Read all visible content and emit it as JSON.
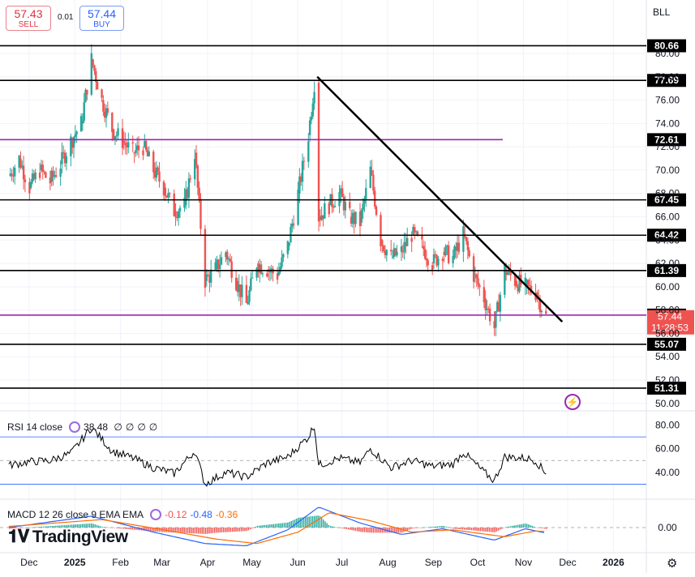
{
  "header": {
    "sell_price": "57.43",
    "sell_label": "SELL",
    "buy_price": "57.44",
    "buy_label": "BUY",
    "spread": "0.01",
    "symbol": "BLL"
  },
  "rsi_panel": {
    "title": "RSI 14 close",
    "value": "38.48",
    "extras": [
      "∅",
      "∅",
      "∅",
      "∅"
    ],
    "icon": "gear-icon"
  },
  "macd_panel": {
    "title": "MACD 12 26 close 9 EMA EMA",
    "values": [
      {
        "text": "-0.12",
        "color": "#ef5350"
      },
      {
        "text": "-0.48",
        "color": "#2962ff"
      },
      {
        "text": "-0.36",
        "color": "#ff6d00"
      }
    ],
    "icon": "gear-icon"
  },
  "brand": {
    "name": "TradingView",
    "icon": "tv-logo-icon"
  },
  "chart_data": [
    {
      "type": "candlestick",
      "ylim": [
        49.5,
        82.5
      ],
      "yticks": [
        50,
        52,
        54,
        56,
        58,
        60,
        62,
        64,
        66,
        68,
        70,
        72,
        74,
        76,
        78,
        80
      ],
      "x_tick_labels": [
        "Dec",
        "2025",
        "Feb",
        "Mar",
        "Apr",
        "May",
        "Jun",
        "Jul",
        "Aug",
        "Sep",
        "Oct",
        "Nov",
        "Dec",
        "2026"
      ],
      "price_levels": [
        {
          "label": "80.66",
          "value": 80.66,
          "color": "#000000"
        },
        {
          "label": "77.69",
          "value": 77.69,
          "color": "#000000"
        },
        {
          "label": "72.61",
          "value": 72.61,
          "color": "#9c27b0"
        },
        {
          "label": "67.45",
          "value": 67.45,
          "color": "#000000"
        },
        {
          "label": "64.42",
          "value": 64.42,
          "color": "#000000"
        },
        {
          "label": "61.39",
          "value": 61.39,
          "color": "#000000"
        },
        {
          "label": "57.57",
          "value": 57.57,
          "color": "#9c27b0"
        },
        {
          "label": "55.07",
          "value": 55.07,
          "color": "#000000"
        },
        {
          "label": "51.31",
          "value": 51.31,
          "color": "#000000"
        }
      ],
      "last_price": {
        "label": "57.44",
        "countdown": "11:28:53",
        "value": 57.44,
        "color": "#ef5350"
      },
      "trendline": {
        "from": [
          "2025-06-22",
          78.0
        ],
        "to": [
          "2025-12-05",
          57.0
        ]
      },
      "series": [
        {
          "date": "2024-11-25",
          "close": 69.5
        },
        {
          "date": "2024-12-02",
          "close": 71.0
        },
        {
          "date": "2024-12-09",
          "close": 68.5
        },
        {
          "date": "2024-12-16",
          "close": 70.0
        },
        {
          "date": "2024-12-23",
          "close": 69.0
        },
        {
          "date": "2024-12-30",
          "close": 70.5
        },
        {
          "date": "2025-01-06",
          "close": 72.5
        },
        {
          "date": "2025-01-13",
          "close": 74.0
        },
        {
          "date": "2025-01-20",
          "close": 79.5
        },
        {
          "date": "2025-01-27",
          "close": 76.0
        },
        {
          "date": "2025-02-03",
          "close": 73.5
        },
        {
          "date": "2025-02-10",
          "close": 72.5
        },
        {
          "date": "2025-02-17",
          "close": 71.5
        },
        {
          "date": "2025-02-24",
          "close": 72.0
        },
        {
          "date": "2025-03-03",
          "close": 70.0
        },
        {
          "date": "2025-03-10",
          "close": 68.5
        },
        {
          "date": "2025-03-17",
          "close": 66.5
        },
        {
          "date": "2025-03-24",
          "close": 67.0
        },
        {
          "date": "2025-03-31",
          "close": 71.5
        },
        {
          "date": "2025-04-07",
          "close": 60.5
        },
        {
          "date": "2025-04-14",
          "close": 61.5
        },
        {
          "date": "2025-04-21",
          "close": 63.0
        },
        {
          "date": "2025-04-28",
          "close": 60.5
        },
        {
          "date": "2025-05-05",
          "close": 58.5
        },
        {
          "date": "2025-05-12",
          "close": 62.0
        },
        {
          "date": "2025-05-19",
          "close": 61.5
        },
        {
          "date": "2025-05-26",
          "close": 61.0
        },
        {
          "date": "2025-06-02",
          "close": 63.5
        },
        {
          "date": "2025-06-09",
          "close": 68.0
        },
        {
          "date": "2025-06-16",
          "close": 73.0
        },
        {
          "date": "2025-06-20",
          "close": 77.5
        },
        {
          "date": "2025-06-23",
          "close": 66.0
        },
        {
          "date": "2025-06-30",
          "close": 67.0
        },
        {
          "date": "2025-07-07",
          "close": 68.0
        },
        {
          "date": "2025-07-14",
          "close": 66.0
        },
        {
          "date": "2025-07-21",
          "close": 65.5
        },
        {
          "date": "2025-07-28",
          "close": 70.0
        },
        {
          "date": "2025-08-04",
          "close": 64.0
        },
        {
          "date": "2025-08-11",
          "close": 62.5
        },
        {
          "date": "2025-08-18",
          "close": 63.0
        },
        {
          "date": "2025-08-25",
          "close": 64.5
        },
        {
          "date": "2025-09-01",
          "close": 63.5
        },
        {
          "date": "2025-09-08",
          "close": 62.0
        },
        {
          "date": "2025-09-15",
          "close": 63.0
        },
        {
          "date": "2025-09-22",
          "close": 62.5
        },
        {
          "date": "2025-09-29",
          "close": 64.5
        },
        {
          "date": "2025-10-06",
          "close": 61.0
        },
        {
          "date": "2025-10-13",
          "close": 59.0
        },
        {
          "date": "2025-10-20",
          "close": 56.5
        },
        {
          "date": "2025-10-27",
          "close": 61.5
        },
        {
          "date": "2025-11-03",
          "close": 60.5
        },
        {
          "date": "2025-11-10",
          "close": 60.0
        },
        {
          "date": "2025-11-17",
          "close": 59.5
        },
        {
          "date": "2025-11-24",
          "close": 57.44
        }
      ]
    },
    {
      "type": "line",
      "name": "RSI 14 close",
      "yticks": [
        40,
        60,
        80
      ],
      "bands": [
        30,
        50,
        70
      ],
      "ylim": [
        20,
        90
      ],
      "series": [
        {
          "date": "2024-11-25",
          "value": 46
        },
        {
          "date": "2024-12-09",
          "value": 49
        },
        {
          "date": "2024-12-23",
          "value": 50
        },
        {
          "date": "2025-01-06",
          "value": 56
        },
        {
          "date": "2025-01-20",
          "value": 78
        },
        {
          "date": "2025-02-03",
          "value": 58
        },
        {
          "date": "2025-02-17",
          "value": 52
        },
        {
          "date": "2025-03-03",
          "value": 44
        },
        {
          "date": "2025-03-17",
          "value": 39
        },
        {
          "date": "2025-03-31",
          "value": 58
        },
        {
          "date": "2025-04-07",
          "value": 30
        },
        {
          "date": "2025-04-21",
          "value": 40
        },
        {
          "date": "2025-05-05",
          "value": 36
        },
        {
          "date": "2025-05-19",
          "value": 48
        },
        {
          "date": "2025-06-02",
          "value": 53
        },
        {
          "date": "2025-06-16",
          "value": 70
        },
        {
          "date": "2025-06-20",
          "value": 80
        },
        {
          "date": "2025-06-23",
          "value": 46
        },
        {
          "date": "2025-07-07",
          "value": 52
        },
        {
          "date": "2025-07-21",
          "value": 48
        },
        {
          "date": "2025-07-28",
          "value": 60
        },
        {
          "date": "2025-08-11",
          "value": 44
        },
        {
          "date": "2025-08-25",
          "value": 50
        },
        {
          "date": "2025-09-08",
          "value": 45
        },
        {
          "date": "2025-09-22",
          "value": 47
        },
        {
          "date": "2025-09-29",
          "value": 57
        },
        {
          "date": "2025-10-13",
          "value": 40
        },
        {
          "date": "2025-10-20",
          "value": 33
        },
        {
          "date": "2025-10-27",
          "value": 53
        },
        {
          "date": "2025-11-10",
          "value": 52
        },
        {
          "date": "2025-11-17",
          "value": 50
        },
        {
          "date": "2025-11-24",
          "value": 38.48
        }
      ]
    },
    {
      "type": "line",
      "name": "MACD 12 26 close 9 EMA EMA",
      "yticks": [
        0
      ],
      "ylim": [
        -2.2,
        2.2
      ],
      "series": [
        {
          "name": "MACD",
          "color": "#2962ff",
          "points": [
            {
              "date": "2024-11-25",
              "value": 0.0
            },
            {
              "date": "2025-01-20",
              "value": 1.0
            },
            {
              "date": "2025-03-03",
              "value": -0.4
            },
            {
              "date": "2025-04-07",
              "value": -1.4
            },
            {
              "date": "2025-05-05",
              "value": -1.6
            },
            {
              "date": "2025-06-02",
              "value": -0.2
            },
            {
              "date": "2025-06-23",
              "value": 1.8
            },
            {
              "date": "2025-07-21",
              "value": 0.4
            },
            {
              "date": "2025-08-18",
              "value": -0.6
            },
            {
              "date": "2025-09-15",
              "value": -0.1
            },
            {
              "date": "2025-10-20",
              "value": -1.1
            },
            {
              "date": "2025-11-10",
              "value": -0.1
            },
            {
              "date": "2025-11-24",
              "value": -0.48
            }
          ]
        },
        {
          "name": "Signal",
          "color": "#ff6d00",
          "points": [
            {
              "date": "2024-11-25",
              "value": 0.1
            },
            {
              "date": "2025-01-27",
              "value": 0.7
            },
            {
              "date": "2025-03-10",
              "value": -0.2
            },
            {
              "date": "2025-04-14",
              "value": -1.0
            },
            {
              "date": "2025-05-12",
              "value": -1.4
            },
            {
              "date": "2025-06-09",
              "value": -0.4
            },
            {
              "date": "2025-06-30",
              "value": 1.3
            },
            {
              "date": "2025-07-28",
              "value": 0.6
            },
            {
              "date": "2025-08-25",
              "value": -0.4
            },
            {
              "date": "2025-09-22",
              "value": -0.2
            },
            {
              "date": "2025-10-27",
              "value": -0.8
            },
            {
              "date": "2025-11-17",
              "value": -0.3
            },
            {
              "date": "2025-11-24",
              "value": -0.36
            }
          ]
        },
        {
          "name": "Histogram",
          "color": "#26a69a",
          "value": -0.12
        }
      ]
    }
  ]
}
